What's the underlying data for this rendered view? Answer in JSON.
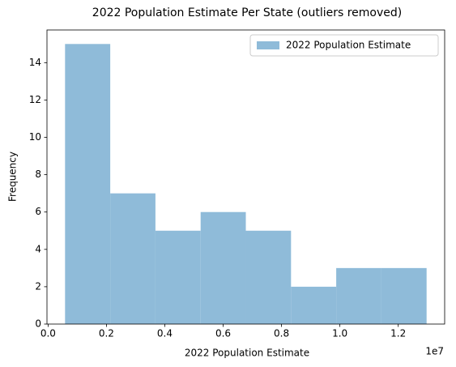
{
  "chart_data": {
    "type": "histogram",
    "title": "2022 Population Estimate Per State (outliers removed)",
    "xlabel": "2022 Population Estimate",
    "ylabel": "Frequency",
    "x_offset_label": "1e7",
    "series": [
      {
        "name": "2022 Population Estimate",
        "color": "#8fbbd9",
        "bins": [
          581381,
          2130209,
          3679038,
          5227866,
          6776695,
          8325523,
          9874352,
          11423180,
          12972008
        ],
        "values": [
          15,
          7,
          5,
          6,
          5,
          2,
          3,
          3
        ]
      }
    ],
    "xlim": [
      -38000,
      13591000
    ],
    "xticks": [
      {
        "value": 0,
        "label": "0.0"
      },
      {
        "value": 2000000,
        "label": "0.2"
      },
      {
        "value": 4000000,
        "label": "0.4"
      },
      {
        "value": 6000000,
        "label": "0.6"
      },
      {
        "value": 8000000,
        "label": "0.8"
      },
      {
        "value": 10000000,
        "label": "1.0"
      },
      {
        "value": 12000000,
        "label": "1.2"
      }
    ],
    "ylim": [
      0,
      15.75
    ],
    "yticks": [
      0,
      2,
      4,
      6,
      8,
      10,
      12,
      14
    ],
    "grid": false,
    "legend": "upper right"
  }
}
